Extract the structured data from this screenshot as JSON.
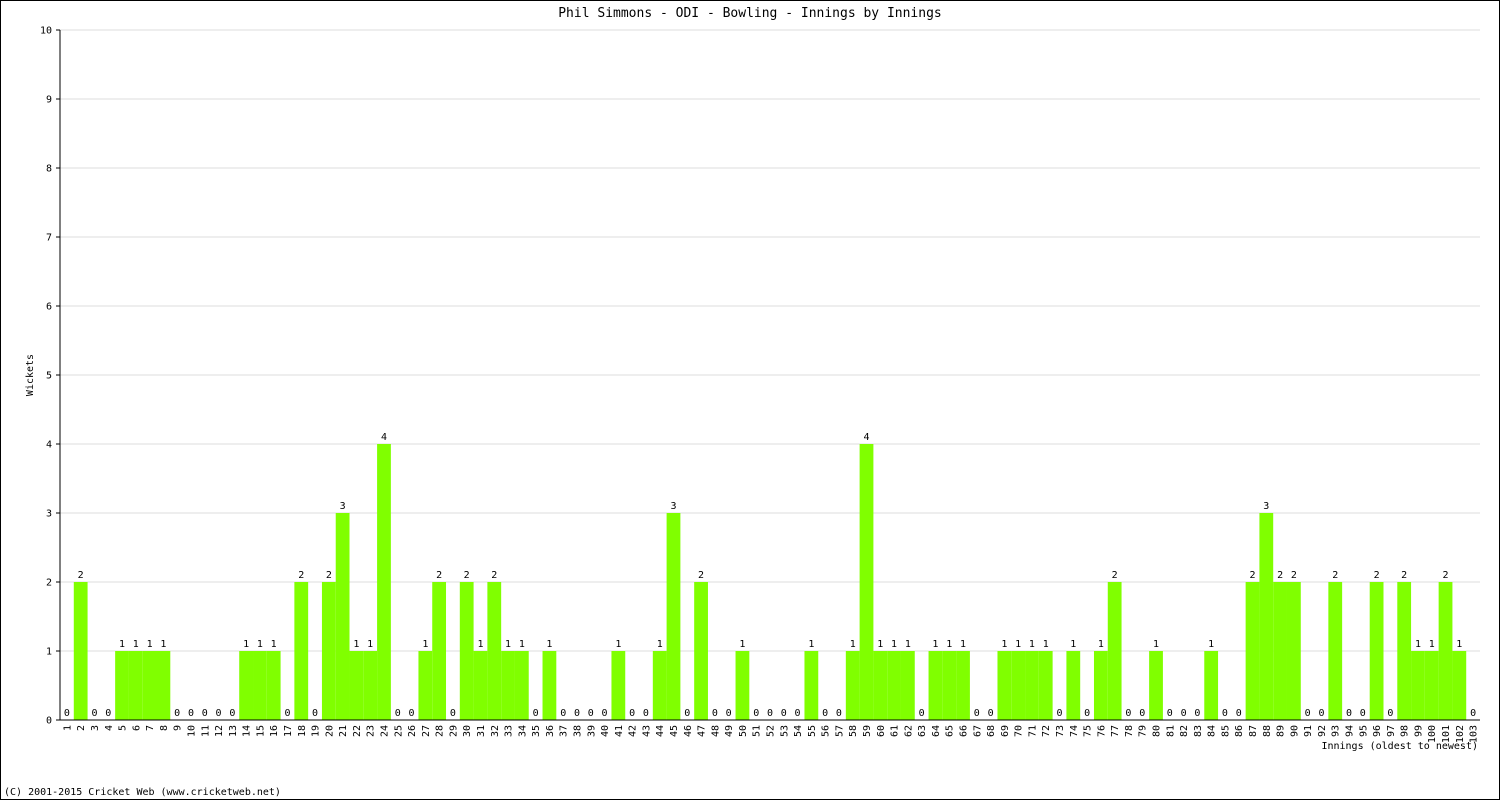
{
  "chart_data": {
    "type": "bar",
    "title": "Phil Simmons - ODI - Bowling - Innings by Innings",
    "x_label": "Innings (oldest to newest)",
    "y_label": "Wickets",
    "credit": "(C) 2001-2015 Cricket Web (www.cricketweb.net)",
    "categories": [
      "1",
      "2",
      "3",
      "4",
      "5",
      "6",
      "7",
      "8",
      "9",
      "10",
      "11",
      "12",
      "13",
      "14",
      "15",
      "16",
      "17",
      "18",
      "19",
      "20",
      "21",
      "22",
      "23",
      "24",
      "25",
      "26",
      "27",
      "28",
      "29",
      "30",
      "31",
      "32",
      "33",
      "34",
      "35",
      "36",
      "37",
      "38",
      "39",
      "40",
      "41",
      "42",
      "43",
      "44",
      "45",
      "46",
      "47",
      "48",
      "49",
      "50",
      "51",
      "52",
      "53",
      "54",
      "55",
      "56",
      "57",
      "58",
      "59",
      "60",
      "61",
      "62",
      "63",
      "64",
      "65",
      "66",
      "67",
      "68",
      "69",
      "70",
      "71",
      "72",
      "73",
      "74",
      "75",
      "76",
      "77",
      "78",
      "79",
      "80",
      "81",
      "82",
      "83",
      "84",
      "85",
      "86",
      "87",
      "88",
      "89",
      "90",
      "91",
      "92",
      "93",
      "94",
      "95",
      "96",
      "97",
      "98",
      "99",
      "100",
      "101",
      "102",
      "103"
    ],
    "values": [
      0,
      2,
      0,
      0,
      1,
      1,
      1,
      1,
      0,
      0,
      0,
      0,
      0,
      1,
      1,
      1,
      0,
      2,
      0,
      2,
      3,
      1,
      1,
      4,
      0,
      0,
      1,
      2,
      0,
      2,
      1,
      2,
      1,
      1,
      0,
      1,
      0,
      0,
      0,
      0,
      1,
      0,
      0,
      1,
      3,
      0,
      2,
      0,
      0,
      1,
      0,
      0,
      0,
      0,
      1,
      0,
      0,
      1,
      4,
      1,
      1,
      1,
      0,
      1,
      1,
      1,
      0,
      0,
      1,
      1,
      1,
      1,
      0,
      1,
      0,
      1,
      2,
      0,
      0,
      1,
      0,
      0,
      0,
      1,
      0,
      0,
      2,
      3,
      2,
      2,
      0,
      0,
      2,
      0,
      0,
      2,
      0,
      2,
      1,
      1,
      2,
      1,
      0
    ],
    "color": "#80ff00",
    "ylim": [
      0,
      10
    ],
    "yticks": [
      0,
      1,
      2,
      3,
      4,
      5,
      6,
      7,
      8,
      9,
      10
    ],
    "grid": true
  }
}
